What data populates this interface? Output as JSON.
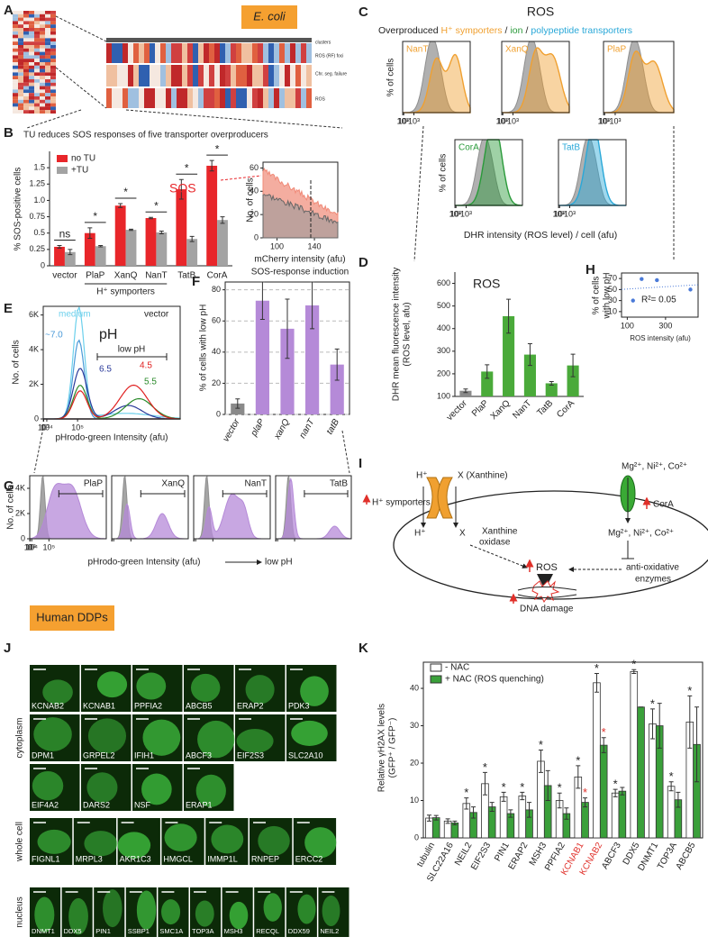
{
  "labels": [
    "A",
    "B",
    "C",
    "D",
    "E",
    "F",
    "G",
    "H",
    "I",
    "J",
    "K"
  ],
  "ecoli": "E. coli",
  "human": "Human DDPs",
  "panel_a": {
    "row_labels": [
      "clusters",
      "ROS (RF) foci",
      "Chr. seg. failure",
      "ROS"
    ]
  },
  "chart_data": [
    {
      "type": "bar",
      "title": "TU reduces SOS responses of five transporter overproducers",
      "categories": [
        "vector",
        "PlaP",
        "XanQ",
        "NanT",
        "TatB",
        "CorA"
      ],
      "series": [
        {
          "name": "no TU",
          "color": "#e8262a",
          "values": [
            0.29,
            0.5,
            0.92,
            0.73,
            1.17,
            1.53
          ],
          "errors": [
            0.02,
            0.08,
            0.03,
            0.01,
            0.15,
            0.08
          ]
        },
        {
          "name": "+TU",
          "color": "#a3a3a3",
          "values": [
            0.21,
            0.3,
            0.55,
            0.51,
            0.41,
            0.7
          ],
          "errors": [
            0.04,
            0.01,
            0.01,
            0.02,
            0.04,
            0.05
          ]
        }
      ],
      "ylim": [
        0,
        1.75
      ],
      "yticks": [
        0,
        0.25,
        0.5,
        0.75,
        {
          "value": 1,
          "label": "1.0"
        },
        1.25,
        1.5
      ],
      "ylabel": [
        "% SOS-positive cells"
      ],
      "significance": [
        "ns",
        "*",
        "*",
        "*",
        "*",
        "*"
      ],
      "annotation": "SOS",
      "group_label": "H⁺ symporters",
      "group_span": [
        1,
        3
      ]
    },
    {
      "type": "density",
      "ylabel": [
        "No. of cells"
      ],
      "xlabel": "mCherry intensity (afu)",
      "annotation": "SOS-response induction",
      "xlim": [
        85,
        165
      ],
      "ylim": [
        0,
        65
      ],
      "xticks": [
        100,
        140
      ],
      "yticks": [
        0,
        20,
        40,
        60
      ],
      "series": [
        {
          "color": "#f08a78"
        },
        {
          "color": "#9a9a9a"
        }
      ]
    },
    {
      "type": "density",
      "title": "ROS",
      "subtitle": [
        "Overproduced",
        "H⁺ symporters",
        "/",
        "ion",
        "/",
        "polypeptide transporters"
      ],
      "subtitle_colors": [
        "#222222",
        "#f0a030",
        "#222222",
        "#2a9a3a",
        "#222222",
        "#2aa8d8"
      ],
      "plots": [
        {
          "name": "NanT",
          "color": "#f0a030"
        },
        {
          "name": "XanQ",
          "color": "#f0a030"
        },
        {
          "name": "PlaP",
          "color": "#f0a030"
        },
        {
          "name": "CorA",
          "color": "#2a9a3a"
        },
        {
          "name": "TatB",
          "color": "#2aa8d8"
        }
      ],
      "vector_color": "#8f8f8f",
      "ylabel": [
        "% of cells"
      ],
      "xlabel": "DHR intensity (ROS level) / cell (afu)",
      "xscale": "log",
      "xlim": [
        3,
        6000
      ],
      "xticks": [
        {
          "value": 10,
          "label": "10¹"
        },
        {
          "value": 100,
          "label": "10²"
        },
        {
          "value": 1000,
          "label": "10³"
        }
      ]
    },
    {
      "type": "bar",
      "title": "ROS",
      "categories": [
        "vector",
        "PlaP",
        "XanQ",
        "NanT",
        "TatB",
        "CorA"
      ],
      "series": [
        {
          "color": "#4aaa3a",
          "colors": [
            "#8a8a8a",
            "#4aaa3a",
            "#4aaa3a",
            "#4aaa3a",
            "#4aaa3a",
            "#4aaa3a"
          ],
          "values": [
            125,
            210,
            455,
            285,
            158,
            237
          ],
          "errors": [
            8,
            30,
            75,
            48,
            8,
            50
          ]
        }
      ],
      "ylim": [
        100,
        650
      ],
      "yticks": [
        100,
        200,
        300,
        400,
        500,
        600
      ],
      "ylabel": [
        "DHR mean fluorescence intensity",
        "(ROS level, afu)"
      ]
    },
    {
      "type": "scatter",
      "x": [
        130,
        175,
        255,
        430
      ],
      "y": [
        30,
        69,
        67,
        50
      ],
      "color": "#4a7ad8",
      "xlim": [
        70,
        470
      ],
      "ylim": [
        0,
        80
      ],
      "xticks": [
        100,
        300
      ],
      "yticks": [
        10,
        30,
        50,
        70
      ],
      "ylabel": [
        "% of cells",
        "with low pH"
      ],
      "xlabel": "ROS intensity (afu)",
      "annotation": "R²= 0.05"
    },
    {
      "type": "density",
      "title": "pH",
      "legend": "vector",
      "annotation": "low pH",
      "series": [
        {
          "name": "medium",
          "color": "#6cd0ec"
        },
        {
          "name": "~7.0",
          "color": "#4a9ad8"
        },
        {
          "name": "6.5",
          "color": "#2a3a9a"
        },
        {
          "name": "5.5",
          "color": "#2a8a2a"
        },
        {
          "name": "4.5",
          "color": "#e02020"
        }
      ],
      "ylabel": [
        "No. of cells"
      ],
      "xlabel": "pHrodo-green Intensity (afu)",
      "xscale": "symlog",
      "xlim": [
        -400,
        400000
      ],
      "xticks": [
        0,
        {
          "value": 1000,
          "label": "10³"
        },
        {
          "value": 10000,
          "label": "10⁴"
        },
        {
          "value": 100000,
          "label": "10⁵"
        }
      ],
      "ylim": [
        0,
        6500
      ],
      "yticks": [
        0,
        {
          "value": 2000,
          "label": "2K"
        },
        {
          "value": 4000,
          "label": "4K"
        },
        {
          "value": 6000,
          "label": "6K"
        }
      ]
    },
    {
      "type": "bar",
      "categories": [
        "vector",
        "plaP",
        "xanQ",
        "nanT",
        "tatB"
      ],
      "series": [
        {
          "color": "#b58ad8",
          "colors": [
            "#8a8a8a",
            "#b58ad8",
            "#b58ad8",
            "#b58ad8",
            "#b58ad8"
          ],
          "values": [
            7,
            73,
            55,
            70,
            32
          ],
          "errors": [
            3,
            12,
            19,
            15,
            10
          ]
        }
      ],
      "ylim": [
        0,
        85
      ],
      "yticks": [
        0,
        20,
        40,
        60,
        80
      ],
      "grid": true,
      "italic_categories": true,
      "ylabel": [
        "% of cells with low pH"
      ]
    },
    {
      "type": "density",
      "plots": [
        {
          "name": "PlaP"
        },
        {
          "name": "XanQ"
        },
        {
          "name": "NanT"
        },
        {
          "name": "TatB"
        }
      ],
      "color": "#b58ad8",
      "vector_color": "#8f8f8f",
      "ylabel": [
        "No. of cells"
      ],
      "xlabel": "pHrodo-green Intensity (afu)",
      "annotation": "low pH",
      "xscale": "symlog",
      "xlim": [
        -400,
        400000
      ],
      "xticks": [
        0,
        {
          "value": 1000,
          "label": "10³"
        },
        {
          "value": 10000,
          "label": "10⁴"
        },
        {
          "value": 100000,
          "label": "10⁵"
        }
      ],
      "ylim": [
        0,
        5000
      ],
      "yticks": [
        0,
        {
          "value": 2000,
          "label": "2K"
        },
        {
          "value": 4000,
          "label": "4K"
        }
      ]
    },
    {
      "type": "bar",
      "categories": [
        "tubulin",
        "SLC22A16",
        "NEIL2",
        "EIF2S3",
        "PIN1",
        "ERAP2",
        "MSH3",
        "PPFIA2",
        "KCNAB1",
        "KCNAB2",
        "ABCF3",
        "DDX5",
        "DNMT1",
        "TOP3A",
        "ABCB5"
      ],
      "series": [
        {
          "name": "- NAC",
          "color": "#ffffff",
          "mark_color": "#222222",
          "values": [
            5.3,
            4.5,
            9.2,
            14.5,
            11,
            11.2,
            20.5,
            10,
            16.3,
            41.5,
            12,
            44.5,
            30.5,
            13.8,
            31
          ],
          "errors": [
            0.8,
            0.6,
            1.5,
            3,
            1.2,
            1,
            3,
            2,
            3,
            2.5,
            1,
            0.5,
            4,
            1.2,
            7
          ],
          "marks": [
            null,
            null,
            "*",
            "*",
            "*",
            "*",
            "*",
            "*",
            "*",
            "*",
            "*",
            "*",
            "*",
            "*",
            "*"
          ]
        },
        {
          "name": "+ NAC (ROS quenching)",
          "color": "#3aa03a",
          "mark_color": "#e0302a",
          "values": [
            5.4,
            4,
            6.8,
            8.3,
            6.5,
            7.5,
            14,
            6.5,
            9.5,
            24.8,
            12.5,
            35,
            30,
            10.2,
            25
          ],
          "errors": [
            0.6,
            0.5,
            1.5,
            1.2,
            1,
            2,
            4,
            1.5,
            1.2,
            2,
            1,
            0,
            6,
            2,
            10
          ],
          "marks": [
            null,
            null,
            null,
            null,
            null,
            null,
            null,
            null,
            "*",
            "*",
            null,
            null,
            null,
            null,
            null
          ]
        }
      ],
      "ylim": [
        0,
        47
      ],
      "yticks": [
        0,
        10,
        20,
        30,
        40
      ],
      "highlight": [
        8,
        9
      ],
      "highlight_color": "#e0302a",
      "ylabel": [
        "Relative γH2AX levels",
        "(GFP⁺ / GFP⁻)"
      ]
    }
  ],
  "diagram": {
    "h_top": "H⁺",
    "xanthine": "X (Xanthine)",
    "symporters": "H⁺ symporters",
    "h_bottom": "H⁺",
    "x_in": "X",
    "oxidase": [
      "Xanthine",
      "oxidase"
    ],
    "ros": "ROS",
    "dna": "DNA damage",
    "ions_out": "Mg²⁺, Ni²⁺, Co²⁺",
    "cora": "CorA",
    "ions_in": "Mg²⁺, Ni²⁺, Co²⁺",
    "enzymes": [
      "anti-oxidative",
      "enzymes"
    ]
  },
  "panel_j": {
    "groups": [
      {
        "name": "cytoplasm",
        "rows": [
          [
            "KCNAB2",
            "KCNAB1",
            "PPFIA2",
            "ABCB5",
            "ERAP2",
            "PDK3"
          ],
          [
            "DPM1",
            "GRPEL2",
            "IFIH1",
            "ABCF3",
            "EIF2S3",
            "SLC2A10"
          ],
          [
            "EIF4A2",
            "DARS2",
            "NSF",
            "ERAP1"
          ]
        ]
      },
      {
        "name": "whole cell",
        "rows": [
          [
            "FIGNL1",
            "MRPL3",
            "AKR1C3",
            "HMGCL",
            "IMMP1L",
            "RNPEP",
            "ERCC2"
          ]
        ]
      },
      {
        "name": "nucleus",
        "rows": [
          [
            "DNMT1",
            "DDX5",
            "PIN1",
            "SSBP1",
            "SMC1A",
            "TOP3A",
            "MSH3",
            "RECQL",
            "DDX59",
            "NEIL2"
          ]
        ]
      }
    ]
  }
}
